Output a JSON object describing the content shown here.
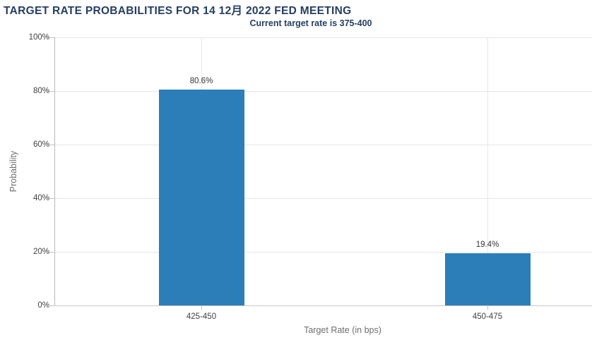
{
  "header": {
    "title": "TARGET RATE PROBABILITIES FOR 14 12月 2022 FED MEETING",
    "subtitle": "Current target rate is 375-400"
  },
  "chart_data": {
    "type": "bar",
    "title": "TARGET RATE PROBABILITIES FOR 14 12月 2022 FED MEETING",
    "subtitle": "Current target rate is 375-400",
    "categories": [
      "425-450",
      "450-475"
    ],
    "values": [
      80.6,
      19.4
    ],
    "value_labels": [
      "80.6%",
      "19.4%"
    ],
    "xlabel": "Target Rate (in bps)",
    "ylabel": "Probability",
    "ylim": [
      0,
      100
    ],
    "ytick_interval": 20,
    "yticks": [
      "0%",
      "20%",
      "40%",
      "60%",
      "80%",
      "100%"
    ],
    "grid": true,
    "legend_position": "none",
    "colors": {
      "bar": "#2b7eb8",
      "heading_text": "#253e62",
      "axis_tick_text": "#3f3f3f",
      "axis_title_text": "#6e6e6e",
      "gridline": "#e6e6e6",
      "axis_line": "#b9b9b9"
    }
  }
}
